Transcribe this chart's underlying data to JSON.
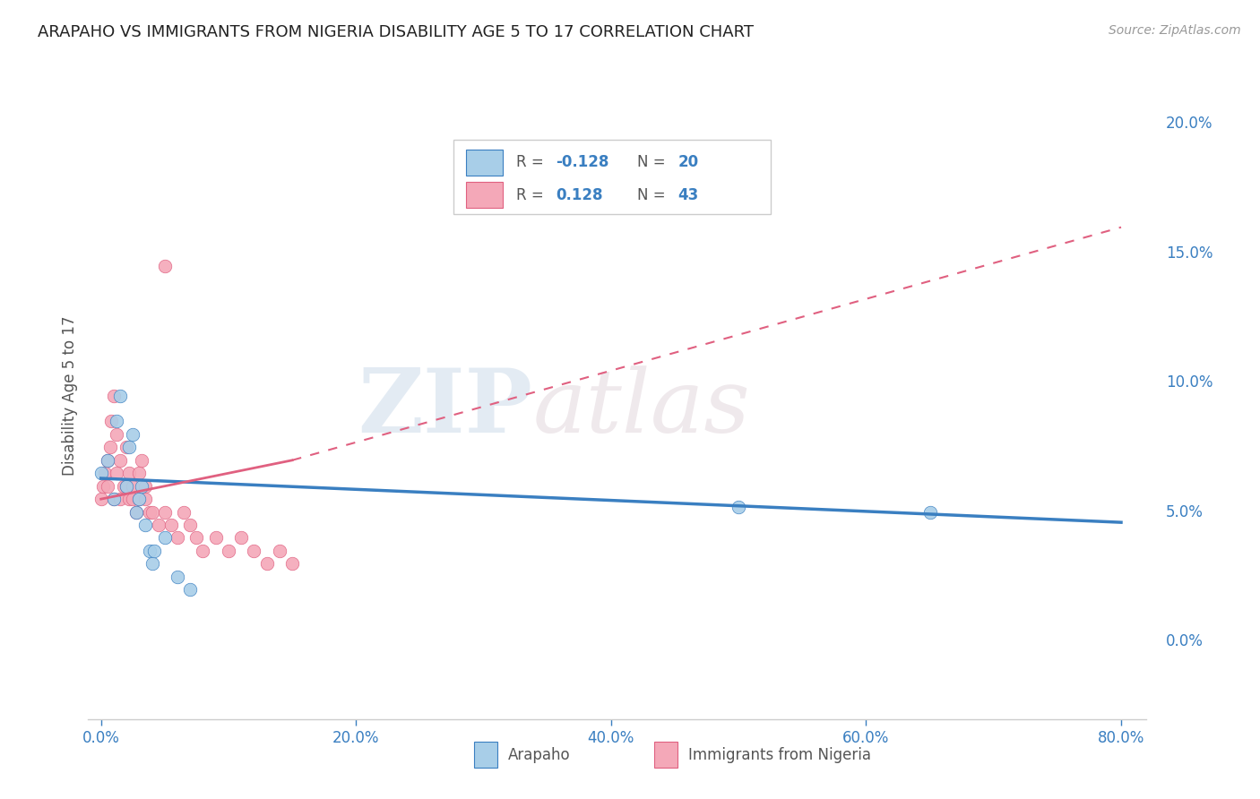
{
  "title": "ARAPAHO VS IMMIGRANTS FROM NIGERIA DISABILITY AGE 5 TO 17 CORRELATION CHART",
  "source": "Source: ZipAtlas.com",
  "ylabel": "Disability Age 5 to 17",
  "xlabel_arapaho": "Arapaho",
  "xlabel_nigeria": "Immigrants from Nigeria",
  "xlim": [
    -1.0,
    82.0
  ],
  "ylim": [
    -3.0,
    22.0
  ],
  "yticks": [
    0.0,
    5.0,
    10.0,
    15.0,
    20.0
  ],
  "xticks": [
    0.0,
    20.0,
    40.0,
    60.0,
    80.0
  ],
  "arapaho_R": -0.128,
  "arapaho_N": 20,
  "nigeria_R": 0.128,
  "nigeria_N": 43,
  "arapaho_color": "#A8CEE8",
  "nigeria_color": "#F4A8B8",
  "arapaho_line_color": "#3A7FC1",
  "nigeria_line_color": "#E06080",
  "watermark_zip": "ZIP",
  "watermark_atlas": "atlas",
  "background_color": "#ffffff",
  "grid_color": "#dddddd",
  "arapaho_x": [
    0.0,
    0.5,
    1.0,
    1.2,
    1.5,
    2.0,
    2.2,
    2.5,
    2.8,
    3.0,
    3.2,
    3.5,
    3.8,
    4.0,
    4.2,
    5.0,
    6.0,
    7.0,
    50.0,
    65.0
  ],
  "arapaho_y": [
    6.5,
    7.0,
    5.5,
    8.5,
    9.5,
    6.0,
    7.5,
    8.0,
    5.0,
    5.5,
    6.0,
    4.5,
    3.5,
    3.0,
    3.5,
    4.0,
    2.5,
    2.0,
    5.2,
    5.0
  ],
  "nigeria_x": [
    0.0,
    0.2,
    0.3,
    0.5,
    0.5,
    0.7,
    0.8,
    1.0,
    1.0,
    1.2,
    1.2,
    1.5,
    1.5,
    1.8,
    2.0,
    2.0,
    2.2,
    2.2,
    2.5,
    2.5,
    2.8,
    3.0,
    3.0,
    3.2,
    3.5,
    3.5,
    3.8,
    4.0,
    4.5,
    5.0,
    5.5,
    6.0,
    6.5,
    7.0,
    7.5,
    8.0,
    9.0,
    10.0,
    11.0,
    12.0,
    13.0,
    14.0,
    15.0
  ],
  "nigeria_y": [
    5.5,
    6.0,
    6.5,
    6.0,
    7.0,
    7.5,
    8.5,
    9.5,
    5.5,
    8.0,
    6.5,
    7.0,
    5.5,
    6.0,
    7.5,
    6.0,
    5.5,
    6.5,
    6.0,
    5.5,
    5.0,
    6.5,
    5.5,
    7.0,
    5.5,
    6.0,
    5.0,
    5.0,
    4.5,
    5.0,
    4.5,
    4.0,
    5.0,
    4.5,
    4.0,
    3.5,
    4.0,
    3.5,
    4.0,
    3.5,
    3.0,
    3.5,
    3.0
  ],
  "nigeria_outlier_x": 5.0,
  "nigeria_outlier_y": 14.5,
  "arapaho_line_x0": 0.0,
  "arapaho_line_y0": 6.3,
  "arapaho_line_x1": 80.0,
  "arapaho_line_y1": 4.6,
  "nigeria_solid_x0": 0.0,
  "nigeria_solid_y0": 5.5,
  "nigeria_solid_x1": 15.0,
  "nigeria_solid_y1": 7.0,
  "nigeria_dash_x0": 15.0,
  "nigeria_dash_y0": 7.0,
  "nigeria_dash_x1": 80.0,
  "nigeria_dash_y1": 16.0
}
